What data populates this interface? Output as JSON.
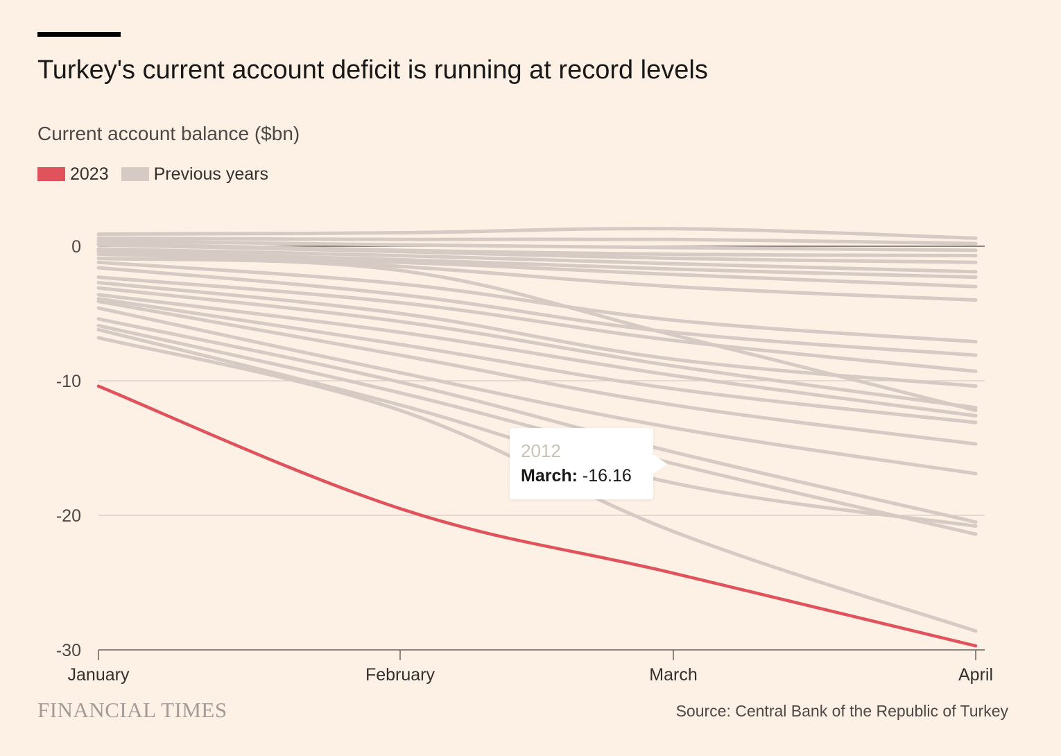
{
  "header": {
    "title": "Turkey's current account deficit is running at record levels",
    "subtitle": "Current account balance ($bn)"
  },
  "legend": [
    {
      "label": "2023",
      "color": "#e0535d"
    },
    {
      "label": "Previous years",
      "color": "#d5cbc4"
    }
  ],
  "tooltip": {
    "series": "2012",
    "month": "March:",
    "value": "-16.16"
  },
  "footer": {
    "brand": "FINANCIAL TIMES",
    "source": "Source: Central Bank of the Republic of Turkey"
  },
  "chart_data": {
    "type": "line",
    "x": [
      "January",
      "February",
      "March",
      "April"
    ],
    "ylim": [
      -30,
      0
    ],
    "yticks": [
      0,
      -10,
      -20,
      -30
    ],
    "grid": true,
    "legend_position": "top-left",
    "series": [
      {
        "name": "2023",
        "color": "#e0535d",
        "highlight": true,
        "values": [
          -10.4,
          -19.5,
          -24.3,
          -29.7
        ]
      },
      {
        "values": [
          0.9,
          1.0,
          1.3,
          0.6
        ]
      },
      {
        "values": [
          0.6,
          0.5,
          0.5,
          0.2
        ]
      },
      {
        "values": [
          0.4,
          0.1,
          -0.1,
          -0.3
        ]
      },
      {
        "values": [
          0.2,
          -0.3,
          -0.6,
          -0.7
        ]
      },
      {
        "values": [
          0.1,
          -0.4,
          -0.9,
          -1.2
        ]
      },
      {
        "values": [
          -0.2,
          -0.7,
          -1.3,
          -1.9
        ]
      },
      {
        "values": [
          -0.4,
          -1.0,
          -1.7,
          -2.3
        ]
      },
      {
        "values": [
          -0.6,
          -1.2,
          -2.1,
          -3.0
        ]
      },
      {
        "values": [
          -0.3,
          -1.5,
          -3.0,
          -4.0
        ]
      },
      {
        "values": [
          -0.9,
          -1.8,
          -6.6,
          -12.2
        ]
      },
      {
        "values": [
          -1.2,
          -2.8,
          -5.5,
          -7.1
        ]
      },
      {
        "values": [
          -1.6,
          -3.6,
          -6.4,
          -8.1
        ]
      },
      {
        "values": [
          -2.3,
          -4.2,
          -7.0,
          -9.3
        ]
      },
      {
        "values": [
          -2.7,
          -5.0,
          -8.4,
          -10.4
        ]
      },
      {
        "values": [
          -3.1,
          -5.6,
          -8.9,
          -12.0
        ]
      },
      {
        "values": [
          -3.6,
          -6.4,
          -9.6,
          -12.6
        ]
      },
      {
        "values": [
          -3.9,
          -7.3,
          -10.6,
          -13.1
        ]
      },
      {
        "values": [
          -4.1,
          -8.1,
          -11.8,
          -14.7
        ]
      },
      {
        "values": [
          -4.6,
          -9.4,
          -13.5,
          -16.9
        ]
      },
      {
        "values": [
          -5.4,
          -10.1,
          -15.3,
          -20.5
        ]
      },
      {
        "values": [
          -5.9,
          -10.9,
          -16.16,
          -21.4
        ]
      },
      {
        "values": [
          -6.2,
          -11.8,
          -17.6,
          -20.8
        ]
      },
      {
        "values": [
          -6.8,
          -12.2,
          -21.2,
          -28.6
        ]
      }
    ]
  }
}
